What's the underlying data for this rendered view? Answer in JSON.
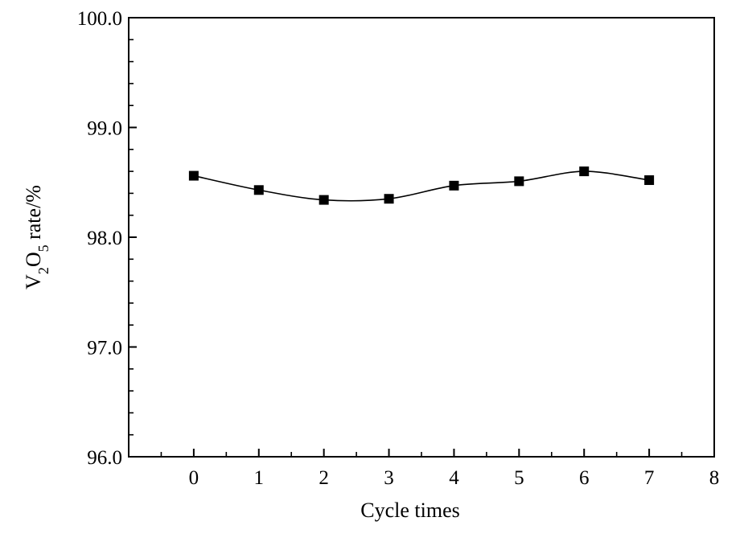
{
  "chart_data": {
    "type": "line",
    "title": "",
    "xlabel": "Cycle times",
    "ylabel_parts": [
      "V",
      "2",
      "O",
      "5",
      " rate/%"
    ],
    "x": [
      0,
      1,
      2,
      3,
      4,
      5,
      6,
      7
    ],
    "series": [
      {
        "values": [
          98.56,
          98.43,
          98.34,
          98.35,
          98.47,
          98.51,
          98.6,
          98.52
        ],
        "marker": "square",
        "color": "#000000"
      }
    ],
    "xlim": [
      -1,
      8
    ],
    "ylim": [
      96.0,
      100.0
    ],
    "x_ticks": [
      0,
      1,
      2,
      3,
      4,
      5,
      6,
      7,
      8
    ],
    "x_tick_labels": [
      "0",
      "1",
      "2",
      "3",
      "4",
      "5",
      "6",
      "7",
      "8"
    ],
    "y_ticks": [
      96.0,
      97.0,
      98.0,
      99.0,
      100.0
    ],
    "y_tick_labels": [
      "96.0",
      "97.0",
      "98.0",
      "99.0",
      "100.0"
    ],
    "y_minor_step": 0.2,
    "x_minor_step": 0.5,
    "grid": false,
    "legend": "none"
  }
}
